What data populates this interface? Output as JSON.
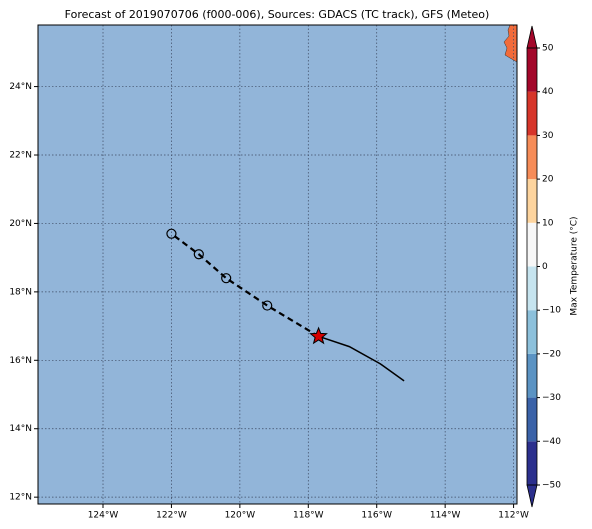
{
  "map": {
    "title": "Forecast of 2019070706 (f000-006), Sources: GDACS (TC track), GFS (Meteo)",
    "ocean_color": "#92b5d9",
    "land_color": "#f26b3a",
    "lonlim": [
      -125.9,
      -111.9
    ],
    "latlim": [
      11.8,
      25.8
    ],
    "lonticks": [
      {
        "value": -124,
        "label": "124°W"
      },
      {
        "value": -122,
        "label": "122°W"
      },
      {
        "value": -120,
        "label": "120°W"
      },
      {
        "value": -118,
        "label": "118°W"
      },
      {
        "value": -116,
        "label": "116°W"
      },
      {
        "value": -114,
        "label": "114°W"
      },
      {
        "value": -112,
        "label": "112°W"
      }
    ],
    "latticks": [
      {
        "value": 12,
        "label": "12°N"
      },
      {
        "value": 14,
        "label": "14°N"
      },
      {
        "value": 16,
        "label": "16°N"
      },
      {
        "value": 18,
        "label": "18°N"
      },
      {
        "value": 20,
        "label": "20°N"
      },
      {
        "value": 22,
        "label": "22°N"
      },
      {
        "value": 24,
        "label": "24°N"
      }
    ],
    "track": {
      "past": {
        "lon": [
          -117.7,
          -116.8,
          -115.9,
          -115.2
        ],
        "lat": [
          16.7,
          16.4,
          15.9,
          15.4
        ],
        "color": "#000000"
      },
      "current": {
        "lon": -117.7,
        "lat": 16.7,
        "color": "#d40000"
      },
      "forecast": {
        "lon": [
          -119.2,
          -120.4,
          -121.2,
          -122.0
        ],
        "lat": [
          17.6,
          18.4,
          19.1,
          19.7
        ],
        "color": "#000000"
      }
    },
    "colorbar": {
      "label": "Max Temperature (°C)",
      "levels": [
        -50,
        -40,
        -30,
        -20,
        -10,
        0,
        10,
        20,
        30,
        40,
        50
      ],
      "colors": [
        "#2b2f8d",
        "#3a62a8",
        "#5b93c3",
        "#8cc0db",
        "#c6e4ef",
        "#f7f7f7",
        "#fdd49e",
        "#f68c58",
        "#d6352a",
        "#a3072a"
      ],
      "ticks": [
        {
          "value": -50,
          "label": "−50"
        },
        {
          "value": -40,
          "label": "−40"
        },
        {
          "value": -30,
          "label": "−30"
        },
        {
          "value": -20,
          "label": "−20"
        },
        {
          "value": -10,
          "label": "−10"
        },
        0,
        10,
        20,
        30,
        40,
        50
      ]
    }
  }
}
